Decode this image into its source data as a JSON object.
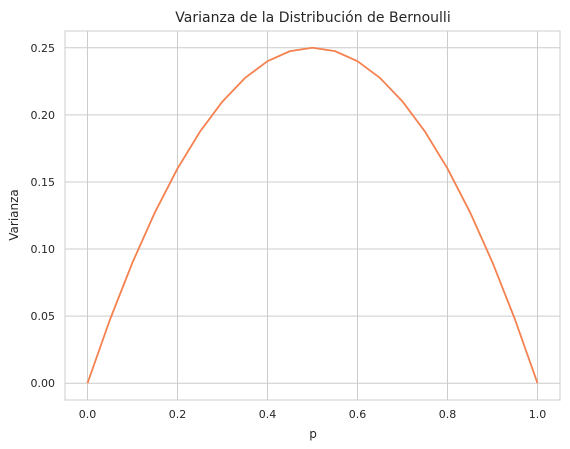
{
  "chart_data": {
    "type": "line",
    "title": "Varianza de la Distribución de Bernoulli",
    "xlabel": "p",
    "ylabel": "Varianza",
    "xlim": [
      -0.05,
      1.05
    ],
    "ylim": [
      -0.0125,
      0.2625
    ],
    "xticks": [
      0.0,
      0.2,
      0.4,
      0.6,
      0.8,
      1.0
    ],
    "xtick_labels": [
      "0.0",
      "0.2",
      "0.4",
      "0.6",
      "0.8",
      "1.0"
    ],
    "yticks": [
      0.0,
      0.05,
      0.1,
      0.15,
      0.2,
      0.25
    ],
    "ytick_labels": [
      "0.00",
      "0.05",
      "0.10",
      "0.15",
      "0.20",
      "0.25"
    ],
    "grid": true,
    "series": [
      {
        "color": "#f4814f",
        "x": [
          0.0,
          0.05,
          0.1,
          0.15,
          0.2,
          0.25,
          0.3,
          0.35,
          0.4,
          0.45,
          0.5,
          0.55,
          0.6,
          0.65,
          0.7,
          0.75,
          0.8,
          0.85,
          0.9,
          0.95,
          1.0
        ],
        "y": [
          0.0,
          0.0475,
          0.09,
          0.1275,
          0.16,
          0.1875,
          0.21,
          0.2275,
          0.24,
          0.2475,
          0.25,
          0.2475,
          0.24,
          0.2275,
          0.21,
          0.1875,
          0.16,
          0.1275,
          0.09,
          0.0475,
          0.0
        ]
      }
    ]
  }
}
